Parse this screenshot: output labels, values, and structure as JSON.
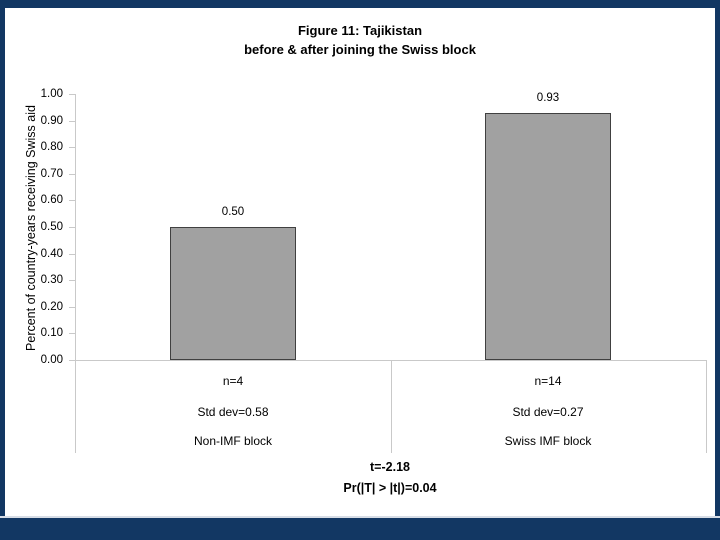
{
  "slide": {
    "background_color": "#123763",
    "panel_color": "#ffffff"
  },
  "chart_data": {
    "type": "bar",
    "title_lines": [
      "Figure 11: Tajikistan",
      "before & after joining the Swiss block"
    ],
    "ylabel": "Percent of country-years receiving Swiss aid",
    "ylim": [
      0.0,
      1.0
    ],
    "ytick_step": 0.1,
    "ytick_labels": [
      "0.00",
      "0.10",
      "0.20",
      "0.30",
      "0.40",
      "0.50",
      "0.60",
      "0.70",
      "0.80",
      "0.90",
      "1.00"
    ],
    "grid": "off",
    "legend": "none",
    "categories": [
      {
        "name": "Non-IMF block",
        "n_label": "n=4",
        "std_label": "Std dev=0.58",
        "value": 0.5,
        "value_label": "0.50"
      },
      {
        "name": "Swiss IMF block",
        "n_label": "n=14",
        "std_label": "Std dev=0.27",
        "value": 0.93,
        "value_label": "0.93"
      }
    ],
    "stats": [
      "t=-2.18",
      "Pr(|T| > |t|)=0.04"
    ],
    "bar_color": "#a1a1a1",
    "bar_border_color": "#404040",
    "axis_color": "#c9c9c9"
  }
}
